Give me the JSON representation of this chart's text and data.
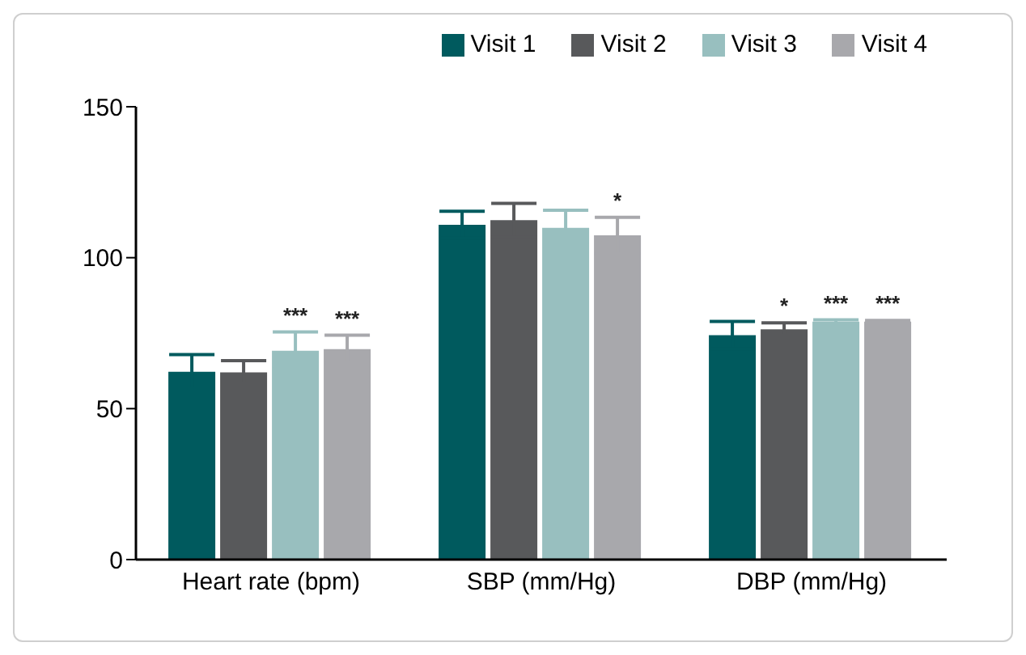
{
  "chart_data": {
    "type": "bar",
    "categories": [
      "Heart rate (bpm)",
      "SBP (mm/Hg)",
      "DBP (mm/Hg)"
    ],
    "series": [
      {
        "name": "Visit 1",
        "color": "#005a5e",
        "values": [
          62.2,
          110.9,
          74.3
        ],
        "errors": [
          5.7,
          4.5,
          4.6
        ]
      },
      {
        "name": "Visit 2",
        "color": "#58595b",
        "values": [
          62,
          112.4,
          76.3
        ],
        "errors": [
          3.9,
          5.6,
          2.1
        ],
        "value_labels": [
          null,
          null,
          "*"
        ]
      },
      {
        "name": "Visit 3",
        "color": "#98bfbf",
        "values": [
          69.2,
          109.9,
          78.8
        ],
        "errors": [
          6.2,
          5.8,
          0.6
        ],
        "value_labels": [
          "***",
          null,
          "***"
        ]
      },
      {
        "name": "Visit 4",
        "color": "#a8a8ac",
        "values": [
          69.7,
          107.4,
          78.8
        ],
        "errors": [
          4.6,
          6,
          0.4
        ],
        "value_labels": [
          "***",
          "*",
          "***"
        ]
      }
    ],
    "ylim": [
      0,
      150
    ],
    "yticks": [
      0,
      50,
      100,
      150
    ],
    "grid": false,
    "legend": "top right"
  }
}
